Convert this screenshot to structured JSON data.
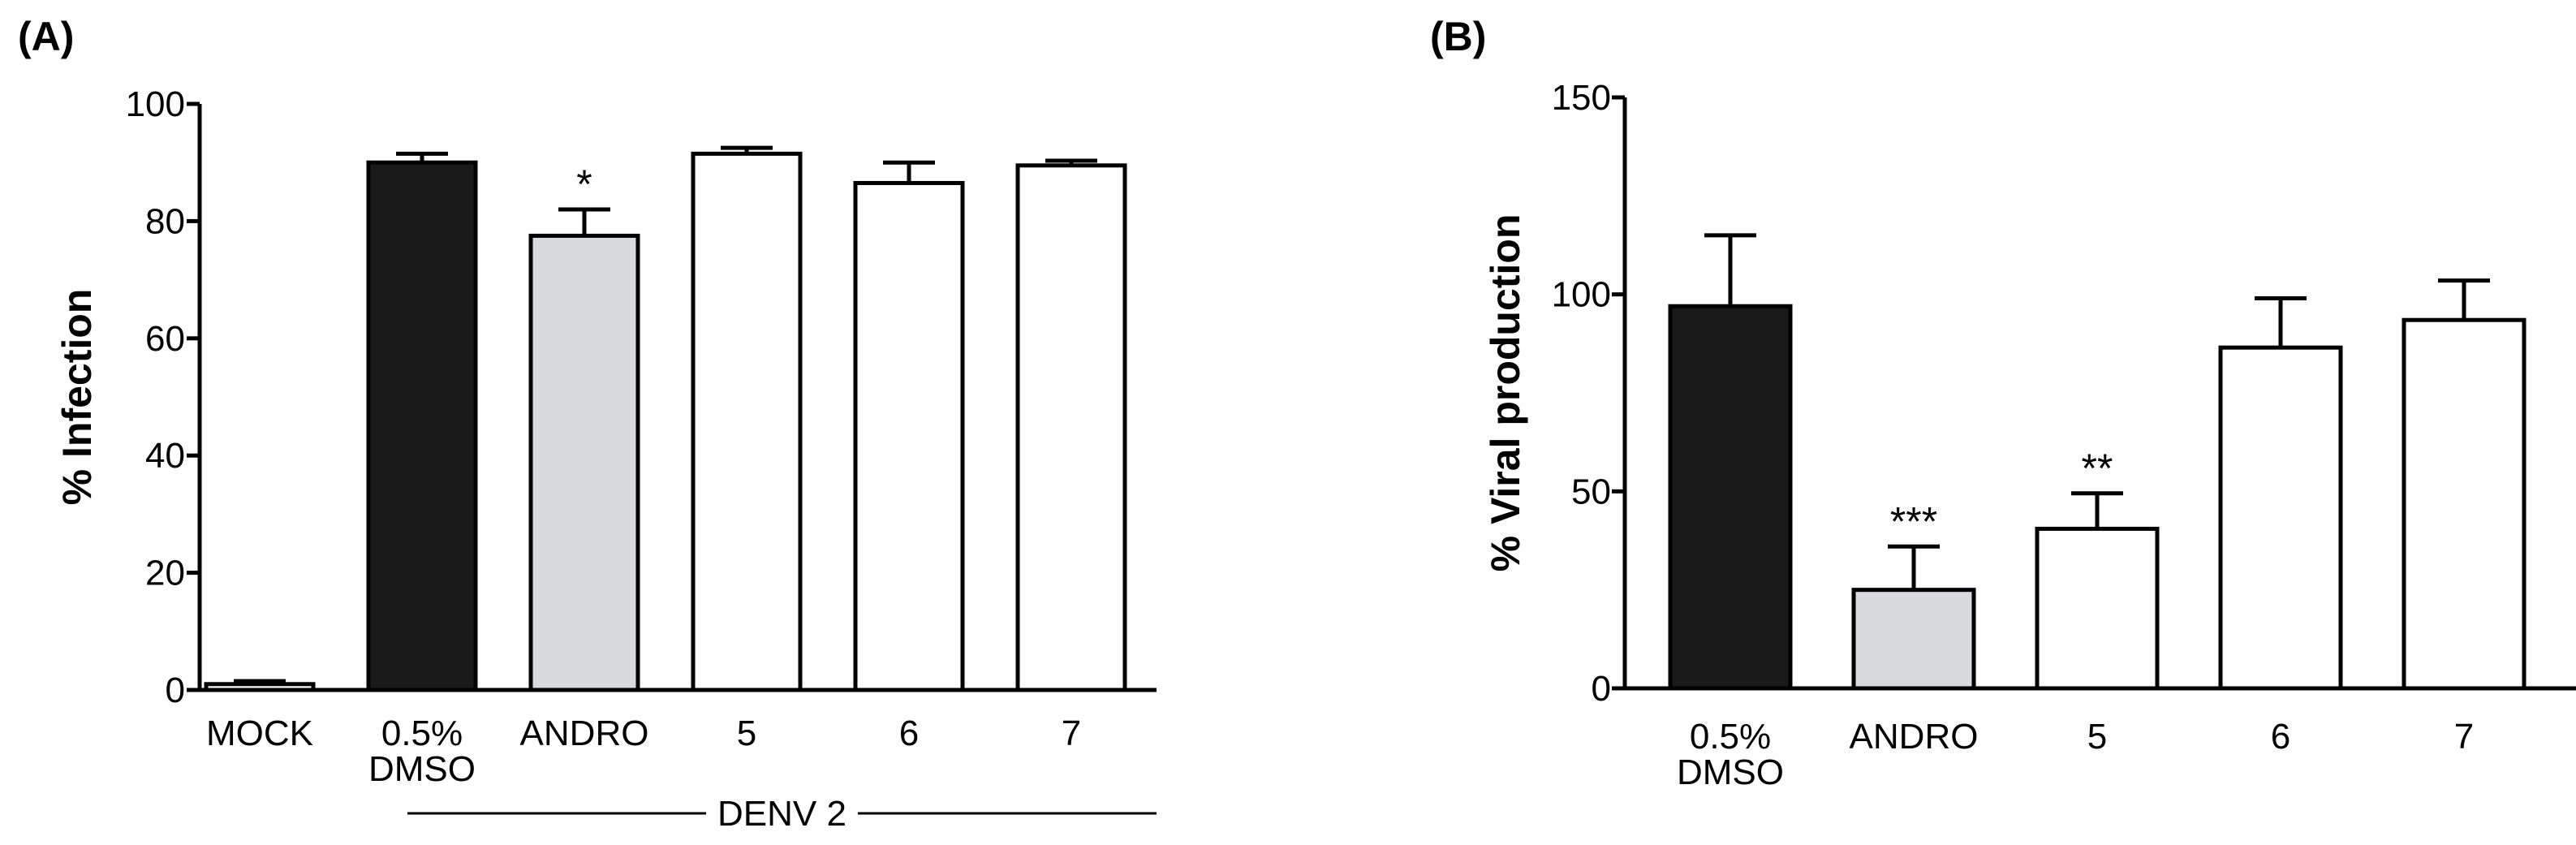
{
  "chart_data": [
    {
      "type": "bar",
      "panel": "(A)",
      "ylabel": "% Infection",
      "ylim": [
        0,
        100
      ],
      "yticks": [
        0,
        20,
        40,
        60,
        80,
        100
      ],
      "categories": [
        {
          "label": "MOCK",
          "lines": [
            "MOCK"
          ]
        },
        {
          "label": "0.5% DMSO",
          "lines": [
            "0.5%",
            "DMSO"
          ]
        },
        {
          "label": "ANDRO",
          "lines": [
            "ANDRO"
          ]
        },
        {
          "label": "5",
          "lines": [
            "5"
          ]
        },
        {
          "label": "6",
          "lines": [
            "6"
          ]
        },
        {
          "label": "7",
          "lines": [
            "7"
          ]
        }
      ],
      "values": [
        1,
        90,
        77.5,
        91.5,
        86.5,
        89.5
      ],
      "errors": [
        0.5,
        1.5,
        4.5,
        1,
        3.5,
        0.8
      ],
      "fills": [
        "#ffffff",
        "#1a1a1a",
        "#d8dbdd",
        "#ffffff",
        "#ffffff",
        "#ffffff"
      ],
      "significance": [
        "",
        "",
        "*",
        "",
        "",
        ""
      ],
      "group_label": "DENV 2"
    },
    {
      "type": "bar",
      "panel": "(B)",
      "ylabel": "% Viral production",
      "ylim": [
        0,
        150
      ],
      "yticks": [
        0,
        50,
        100,
        150
      ],
      "categories": [
        {
          "label": "0.5% DMSO",
          "lines": [
            "0.5%",
            "DMSO"
          ]
        },
        {
          "label": "ANDRO",
          "lines": [
            "ANDRO"
          ]
        },
        {
          "label": "5",
          "lines": [
            "5"
          ]
        },
        {
          "label": "6",
          "lines": [
            "6"
          ]
        },
        {
          "label": "7",
          "lines": [
            "7"
          ]
        }
      ],
      "values": [
        97,
        25,
        40.5,
        86.5,
        93.5
      ],
      "errors": [
        18,
        11,
        9,
        12.5,
        10
      ],
      "fills": [
        "#1a1a1a",
        "#d8dbdd",
        "#ffffff",
        "#ffffff",
        "#ffffff"
      ],
      "significance": [
        "",
        "***",
        "**",
        "",
        ""
      ],
      "group_label": ""
    }
  ]
}
